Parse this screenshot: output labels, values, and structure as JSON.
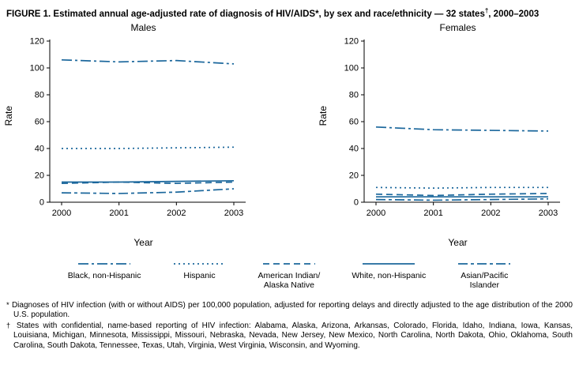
{
  "figure": {
    "title_main": "FIGURE 1. Estimated annual age-adjusted rate of diagnosis of HIV/AIDS*, by sex and race/ethnicity — 32 states",
    "title_sup": "†",
    "title_tail": ", 2000–2003"
  },
  "style": {
    "line_color": "#1b679c",
    "axis_color": "#000000"
  },
  "chart_data": [
    {
      "type": "line",
      "title": "Males",
      "xlabel": "Year",
      "ylabel": "Rate",
      "x": [
        2000,
        2001,
        2002,
        2003
      ],
      "ylim": [
        0,
        120
      ],
      "yticks": [
        0,
        20,
        40,
        60,
        80,
        100,
        120
      ],
      "grid": false,
      "series": [
        {
          "name": "Black, non-Hispanic",
          "legend_label": "Black, non-Hispanic",
          "dash": "dashdot",
          "values": [
            106,
            104.5,
            105.5,
            103
          ]
        },
        {
          "name": "Hispanic",
          "legend_label": "Hispanic",
          "dash": "dot",
          "values": [
            40,
            40,
            40.5,
            41
          ]
        },
        {
          "name": "American Indian/Alaska Native",
          "legend_label": "American Indian/\nAlaska Native",
          "dash": "dash",
          "values": [
            14,
            15,
            14,
            15
          ]
        },
        {
          "name": "White, non-Hispanic",
          "legend_label": "White, non-Hispanic",
          "dash": "solid",
          "values": [
            15,
            15,
            15.5,
            16
          ]
        },
        {
          "name": "Asian/Pacific Islander",
          "legend_label": "Asian/Pacific\nIslander",
          "dash": "dashdash",
          "values": [
            7,
            6.5,
            7.5,
            10
          ]
        }
      ]
    },
    {
      "type": "line",
      "title": "Females",
      "xlabel": "Year",
      "ylabel": "Rate",
      "x": [
        2000,
        2001,
        2002,
        2003
      ],
      "ylim": [
        0,
        120
      ],
      "yticks": [
        0,
        20,
        40,
        60,
        80,
        100,
        120
      ],
      "grid": false,
      "series": [
        {
          "name": "Black, non-Hispanic",
          "legend_label": "Black, non-Hispanic",
          "dash": "dashdot",
          "values": [
            56,
            54,
            53.5,
            53
          ]
        },
        {
          "name": "Hispanic",
          "legend_label": "Hispanic",
          "dash": "dot",
          "values": [
            11,
            10.5,
            11,
            11
          ]
        },
        {
          "name": "American Indian/Alaska Native",
          "legend_label": "American Indian/\nAlaska Native",
          "dash": "dash",
          "values": [
            6,
            5,
            6,
            6.5
          ]
        },
        {
          "name": "White, non-Hispanic",
          "legend_label": "White, non-Hispanic",
          "dash": "solid",
          "values": [
            4,
            4,
            4,
            4
          ]
        },
        {
          "name": "Asian/Pacific Islander",
          "legend_label": "Asian/Pacific\nIslander",
          "dash": "dashdash",
          "values": [
            2,
            1.5,
            2,
            2.5
          ]
        }
      ]
    }
  ],
  "footnotes": [
    {
      "marker": "*",
      "text": "Diagnoses of HIV infection (with or without AIDS) per 100,000 population, adjusted for reporting delays and directly adjusted to the age distribution of the 2000 U.S. population."
    },
    {
      "marker": "†",
      "text": "States with confidential, name-based reporting of HIV infection: Alabama, Alaska, Arizona, Arkansas, Colorado, Florida, Idaho, Indiana, Iowa, Kansas, Louisiana, Michigan, Minnesota, Mississippi, Missouri, Nebraska, Nevada, New Jersey, New Mexico, North Carolina, North Dakota, Ohio, Oklahoma, South Carolina, South Dakota, Tennessee, Texas, Utah, Virginia, West Virginia, Wisconsin, and Wyoming."
    }
  ]
}
